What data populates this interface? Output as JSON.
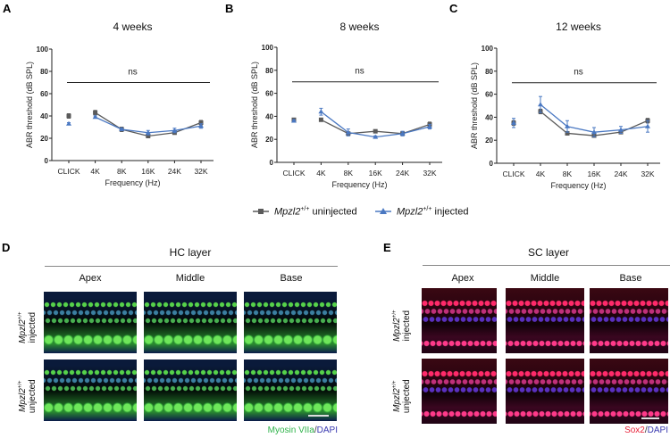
{
  "panels": {
    "A": "A",
    "B": "B",
    "C": "C",
    "D": "D",
    "E": "E"
  },
  "chart_data": [
    {
      "type": "line",
      "title": "4 weeks",
      "xlabel": "Frequency (Hz)",
      "ylabel": "ABR threshold (dB SPL)",
      "ylim": [
        0,
        100
      ],
      "yticks": [
        0,
        20,
        40,
        60,
        80,
        100
      ],
      "categories": [
        "CLICK",
        "4K",
        "8K",
        "16K",
        "24K",
        "32K"
      ],
      "annotation": "ns",
      "series": [
        {
          "name": "uninjected",
          "values": [
            40,
            43,
            28,
            22,
            25,
            34
          ],
          "errors": [
            2,
            2,
            2,
            1,
            1,
            2
          ]
        },
        {
          "name": "injected",
          "values": [
            33,
            39,
            28,
            25,
            27,
            31
          ],
          "errors": [
            1,
            1,
            1,
            2,
            2,
            2
          ]
        }
      ]
    },
    {
      "type": "line",
      "title": "8 weeks",
      "xlabel": "Frequency (Hz)",
      "ylabel": "ABR threshold (dB SPL)",
      "ylim": [
        0,
        100
      ],
      "yticks": [
        0,
        20,
        40,
        60,
        80,
        100
      ],
      "categories": [
        "CLICK",
        "4K",
        "8K",
        "16K",
        "24K",
        "32K"
      ],
      "annotation": "ns",
      "series": [
        {
          "name": "uninjected",
          "values": [
            37,
            37,
            25,
            27,
            25,
            33
          ],
          "errors": [
            1,
            1,
            1,
            1,
            1,
            2
          ]
        },
        {
          "name": "injected",
          "values": [
            36,
            44,
            26,
            22,
            25,
            31
          ],
          "errors": [
            1,
            3,
            3,
            1,
            2,
            2
          ]
        }
      ]
    },
    {
      "type": "line",
      "title": "12 weeks",
      "xlabel": "Frequency (Hz)",
      "ylabel": "ABR threshold (dB SPL)",
      "ylim": [
        0,
        100
      ],
      "yticks": [
        0,
        20,
        40,
        60,
        80,
        100
      ],
      "categories": [
        "CLICK",
        "4K",
        "8K",
        "16K",
        "24K",
        "32K"
      ],
      "annotation": "ns",
      "series": [
        {
          "name": "uninjected",
          "values": [
            35,
            45,
            26,
            24,
            27,
            37
          ],
          "errors": [
            2,
            2,
            1,
            1,
            1,
            2
          ]
        },
        {
          "name": "injected",
          "values": [
            35,
            51,
            32,
            27,
            29,
            32
          ],
          "errors": [
            4,
            7,
            5,
            4,
            3,
            5
          ]
        }
      ]
    }
  ],
  "legend": {
    "gene": "Mpzl2",
    "sup": "+/+",
    "uninjected": " uninjected",
    "injected": " injected"
  },
  "colors": {
    "uninjected": "#5a5a5a",
    "injected": "#4a78c2"
  },
  "D": {
    "title": "HC layer",
    "cols": [
      "Apex",
      "Middle",
      "Base"
    ],
    "rows": [
      {
        "gene": "Mpzl2",
        "sup": "+/+",
        "label": "injected"
      },
      {
        "gene": "Mpzl2",
        "sup": "+/+",
        "label": "unjected"
      }
    ],
    "cap1": "Myosin VIIa",
    "sep": "/",
    "cap2": "DAPI"
  },
  "E": {
    "title": "SC layer",
    "cols": [
      "Apex",
      "Middle",
      "Base"
    ],
    "rows": [
      {
        "gene": "Mpzl2",
        "sup": "+/+",
        "label": "injected"
      },
      {
        "gene": "Mpzl2",
        "sup": "+/+",
        "label": "unjected"
      }
    ],
    "cap1": "Sox2",
    "sep": "/",
    "cap2": "DAPI"
  }
}
